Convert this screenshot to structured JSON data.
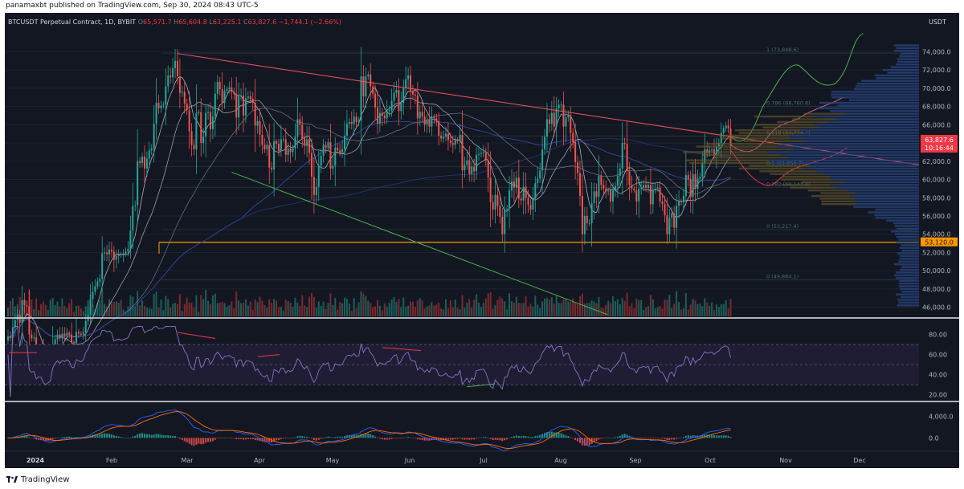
{
  "header": {
    "publish_note": "panamaxbt published on TradingView.com, Sep 30, 2024 08:43 UTC-5"
  },
  "footer": {
    "brand": "TradingView"
  },
  "chart_data": [
    {
      "type": "candlestick",
      "symbol": "BTCUSDT Perpetual Contract, 1D, BYBIT",
      "ohlc": {
        "o_label": "O",
        "o": "65,571.7",
        "h_label": "H",
        "h": "65,604.8",
        "l_label": "L",
        "l": "63,225.1",
        "c_label": "C",
        "c": "63,827.6",
        "change": "−1,744.1 (−2.66%)"
      },
      "currency": "USDT",
      "y_ticks": [
        "74,000.0",
        "72,000.0",
        "70,000.0",
        "68,000.0",
        "66,000.0",
        "64,000.0",
        "62,000.0",
        "60,000.0",
        "58,000.0",
        "56,000.0",
        "54,000.0",
        "52,000.0",
        "50,000.0",
        "48,000.0",
        "46,000.0"
      ],
      "y_tick_values": [
        74000,
        72000,
        70000,
        68000,
        66000,
        64000,
        62000,
        60000,
        58000,
        56000,
        54000,
        52000,
        50000,
        48000,
        46000
      ],
      "ylim": [
        45000,
        76500
      ],
      "x_tick_labels": [
        "2024",
        "Feb",
        "Mar",
        "Apr",
        "May",
        "Jun",
        "Jul",
        "Aug",
        "Sep",
        "Oct",
        "Nov",
        "Dec"
      ],
      "last_price_label": "63,827.6",
      "countdown_label": "10:16:44",
      "support_level": 53120,
      "support_label": "53,120.0",
      "fib_labels": [
        {
          "text": "1 (73,848.6)",
          "value": 73848.6
        },
        {
          "text": "0.786 (68,760.8)",
          "value": 68000
        },
        {
          "text": "0.618 (64,774.7)",
          "value": 64774.7
        },
        {
          "text": "0.5 (61,956.7)",
          "value": 61400
        },
        {
          "text": "0.382 (59,143.4)",
          "value": 59143.4
        },
        {
          "text": "0 (53,217.4)",
          "value": 54500
        },
        {
          "text": "0 (49,884.1)",
          "value": 49000
        }
      ],
      "closes": [
        42800,
        42600,
        43800,
        44600,
        45200,
        44300,
        46800,
        46200,
        46100,
        43000,
        42600,
        42700,
        41200,
        41500,
        41400,
        40200,
        39700,
        39900,
        40100,
        41800,
        42500,
        43000,
        42600,
        43100,
        42900,
        43200,
        43000,
        42200,
        42100,
        43300,
        43100,
        43000,
        43300,
        44500,
        45200,
        46900,
        47700,
        48300,
        48800,
        49100,
        51900,
        52000,
        51800,
        52300,
        52100,
        51200,
        51600,
        51800,
        51700,
        51900,
        52100,
        52400,
        54400,
        57100,
        57200,
        62000,
        61800,
        62500,
        61200,
        62300,
        63200,
        63400,
        66100,
        68400,
        67800,
        68100,
        68200,
        70200,
        71400,
        71200,
        72200,
        73000,
        71300,
        69500,
        69600,
        68300,
        67600,
        65300,
        63800,
        63300,
        67300,
        67400,
        64000,
        64700,
        67300,
        67400,
        65500,
        66900,
        69400,
        70700,
        69900,
        68400,
        69700,
        69900,
        70100,
        69600,
        69400,
        66800,
        69100,
        69200,
        67000,
        68900,
        69100,
        68800,
        68400,
        65900,
        66400,
        64900,
        63800,
        63300,
        63800,
        61300,
        61100,
        64200,
        63900,
        63100,
        64400,
        64400,
        62700,
        63400,
        63000,
        63400,
        64700,
        66600,
        66000,
        64500,
        63700,
        64400,
        62900,
        60300,
        58300,
        59200,
        61500,
        62600,
        63800,
        63500,
        64100,
        61200,
        61500,
        63500,
        63200,
        63000,
        63300,
        64800,
        66100,
        66300,
        66100,
        66900,
        66300,
        66400,
        71300,
        69100,
        71300,
        71500,
        70200,
        69400,
        67900,
        66100,
        67300,
        67000,
        66700,
        67500,
        67600,
        68600,
        69500,
        69800,
        67500,
        68400,
        70000,
        71000,
        71400,
        69600,
        69300,
        69200,
        66700,
        67400,
        66900,
        66000,
        66600,
        65800,
        66900,
        66700,
        66400,
        64800,
        64500,
        64700,
        65000,
        64300,
        64000,
        63800,
        64300,
        64200,
        64900,
        61000,
        61600,
        62100,
        60600,
        61400,
        60900,
        62700,
        62800,
        62900,
        63000,
        62100,
        60200,
        57500,
        56700,
        58300,
        57100,
        55900,
        54000,
        56700,
        56800,
        58800,
        59800,
        59100,
        60200,
        57900,
        57700,
        59200,
        58000,
        57200,
        56700,
        57900,
        59600,
        60100,
        61000,
        63300,
        64700,
        66600,
        66100,
        67300,
        65800,
        67800,
        68200,
        68200,
        65800,
        66800,
        67000,
        65100,
        64100,
        61900,
        60700,
        58200,
        54000,
        56000,
        55200,
        55200,
        57400,
        58700,
        58100,
        60400,
        59400,
        59000,
        58700,
        58800,
        57600,
        58800,
        59300,
        60400,
        61200,
        64000,
        63900,
        60900,
        59400,
        59000,
        58800,
        57600,
        59000,
        59100,
        59400,
        59100,
        59400,
        57300,
        58800,
        59000,
        59100,
        57600,
        57300,
        56100,
        54000,
        55800,
        56300,
        54700,
        57100,
        57600,
        57500,
        58200,
        60500,
        60000,
        58100,
        60600,
        59000,
        60100,
        60300,
        61800,
        63300,
        62900,
        63200,
        63300,
        62800,
        63600,
        64000,
        65100,
        65600,
        65900,
        65600,
        63700
      ]
    },
    {
      "type": "line",
      "name": "RSI",
      "y_ticks": [
        "80.00",
        "60.00",
        "40.00",
        "20.00"
      ],
      "y_tick_values": [
        80,
        60,
        40,
        20
      ],
      "ylim": [
        15,
        90
      ],
      "bands": [
        70,
        50,
        30
      ]
    },
    {
      "type": "bar",
      "name": "MACD",
      "y_ticks": [
        "4,000.0",
        "0.0"
      ],
      "y_tick_values": [
        4000,
        0
      ],
      "ylim": [
        -2200,
        6200
      ]
    }
  ]
}
